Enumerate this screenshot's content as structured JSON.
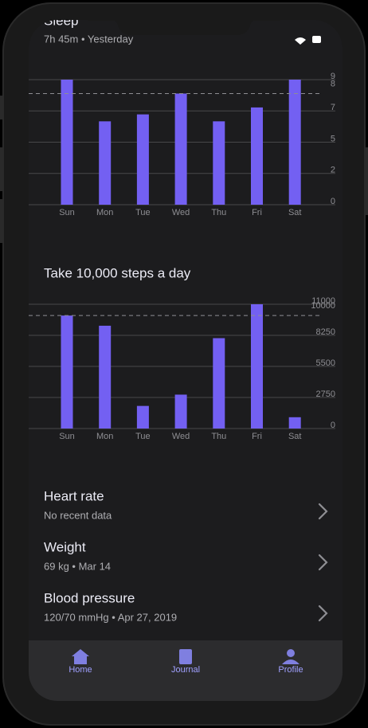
{
  "chart_data": [
    {
      "type": "bar",
      "title": "Sleep",
      "subtitle": "7h 45m • Yesterday",
      "categories": [
        "Sun",
        "Mon",
        "Tue",
        "Wed",
        "Thu",
        "Fri",
        "Sat"
      ],
      "values": [
        9,
        6,
        6.5,
        8,
        6,
        7,
        9
      ],
      "color": "#7360f2",
      "ylim": [
        0,
        9
      ],
      "yticks": [
        0,
        {
          "value": 2.25,
          "label": "2"
        },
        {
          "value": 4.5,
          "label": "5"
        },
        {
          "value": 6.75,
          "label": "7"
        },
        9
      ],
      "goal": 8,
      "grid": true
    },
    {
      "type": "bar",
      "title": "Take 10,000 steps a day",
      "categories": [
        "Sun",
        "Mon",
        "Tue",
        "Wed",
        "Thu",
        "Fri",
        "Sat"
      ],
      "values": [
        10000,
        9100,
        2000,
        3000,
        8000,
        11000,
        1000
      ],
      "color": "#7360f2",
      "ylim": [
        0,
        11000
      ],
      "yticks": [
        0,
        2750,
        5500,
        8250,
        11000
      ],
      "goal": 10000,
      "grid": true
    }
  ],
  "items": [
    {
      "title": "Heart rate",
      "detail": "No recent data"
    },
    {
      "title": "Weight",
      "detail": "69 kg • Mar 14"
    },
    {
      "title": "Blood pressure",
      "detail": "120/70 mmHg • Apr 27, 2019"
    }
  ],
  "tabs": [
    "Home",
    "Journal",
    "Profile"
  ]
}
